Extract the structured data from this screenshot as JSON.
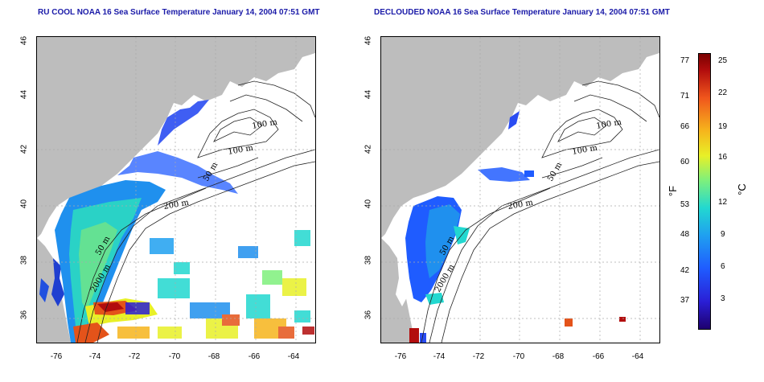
{
  "titles": {
    "left": "RU COOL NOAA 16 Sea Surface Temperature January 14, 2004 07:51 GMT",
    "right": "DECLOUDED NOAA 16 Sea Surface Temperature January 14, 2004 07:51 GMT"
  },
  "axes": {
    "lat_ticks": [
      "46",
      "44",
      "42",
      "40",
      "38",
      "36"
    ],
    "lon_ticks": [
      "-76",
      "-74",
      "-72",
      "-70",
      "-68",
      "-66",
      "-64"
    ]
  },
  "map_labels": {
    "left": [
      "100 m",
      "100 m",
      "50 m",
      "200 m",
      "50 m",
      "2000 m"
    ],
    "right": [
      "100 m",
      "100 m",
      "50 m",
      "200 m",
      "50 m",
      "2000 m"
    ]
  },
  "colorbar": {
    "fahrenheit_ticks": [
      "77",
      "71",
      "66",
      "60",
      "53",
      "48",
      "42",
      "37"
    ],
    "celsius_ticks": [
      "25",
      "22",
      "19",
      "16",
      "12",
      "9",
      "6",
      "3"
    ],
    "fahrenheit_label": "°F",
    "celsius_label": "°C"
  },
  "colors": {
    "land": "#bdbdbd",
    "title": "#1a1aa8",
    "grid": "#aaaaaa"
  }
}
